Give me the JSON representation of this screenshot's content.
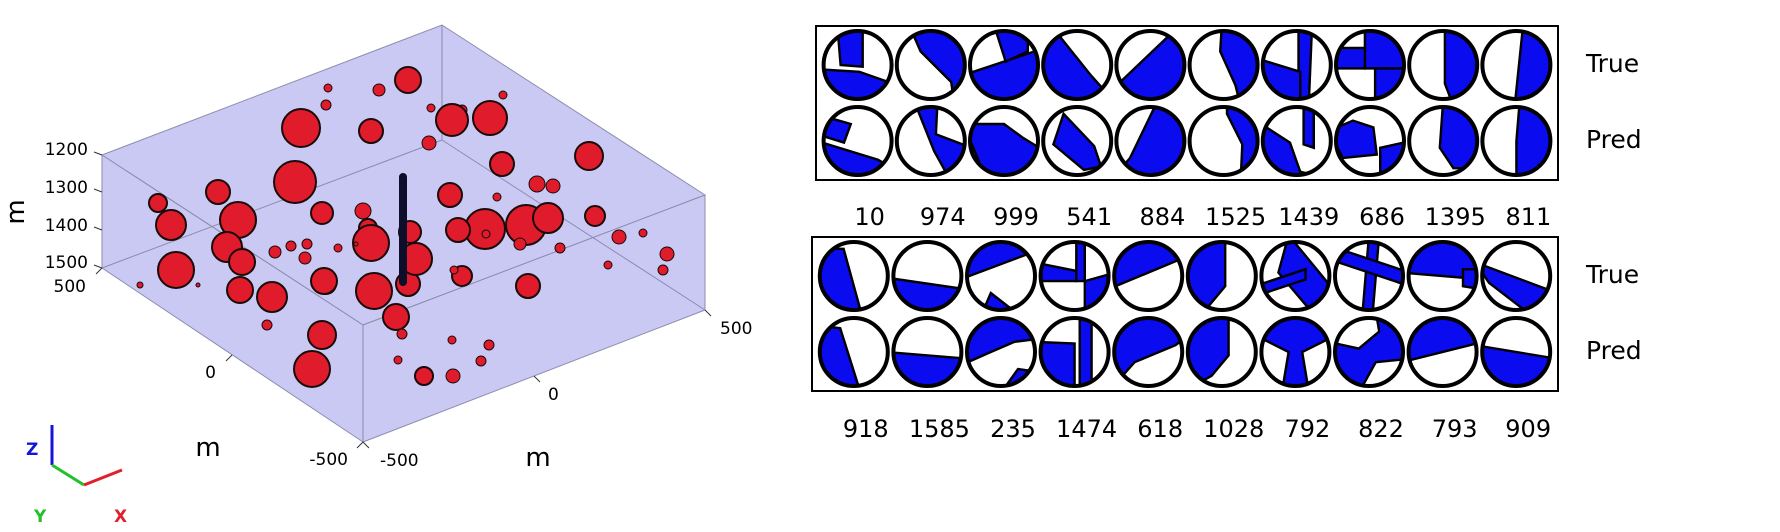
{
  "scene": {
    "z_label": "m",
    "z_ticks": [
      "1200",
      "1300",
      "1400",
      "1500"
    ],
    "y_label": "m",
    "y_ticks": [
      "500",
      "0",
      "-500"
    ],
    "x_label": "m",
    "x_ticks": [
      "-500",
      "0",
      "500"
    ],
    "axes_triad": {
      "z": "Z",
      "y": "Y",
      "x": "X"
    },
    "colors": {
      "box_fill": "#c9c9f4",
      "sphere": "#e01b2b",
      "well": "#0e0e2a",
      "z_axis": "#1515d8",
      "y_axis": "#22c02a",
      "x_axis": "#e0202a"
    }
  },
  "beachball_panels": [
    {
      "row_labels": [
        "True",
        "Pred"
      ],
      "event_ids": [
        "10",
        "974",
        "999",
        "541",
        "884",
        "1525",
        "1439",
        "686",
        "1395",
        "811"
      ]
    },
    {
      "row_labels": [
        "True",
        "Pred"
      ],
      "event_ids": [
        "918",
        "1585",
        "235",
        "1474",
        "618",
        "1028",
        "792",
        "822",
        "793",
        "909"
      ]
    }
  ],
  "beachball_colors": {
    "compressional": "#0b0bf0",
    "dilatational": "#ffffff",
    "outline": "#000000"
  }
}
